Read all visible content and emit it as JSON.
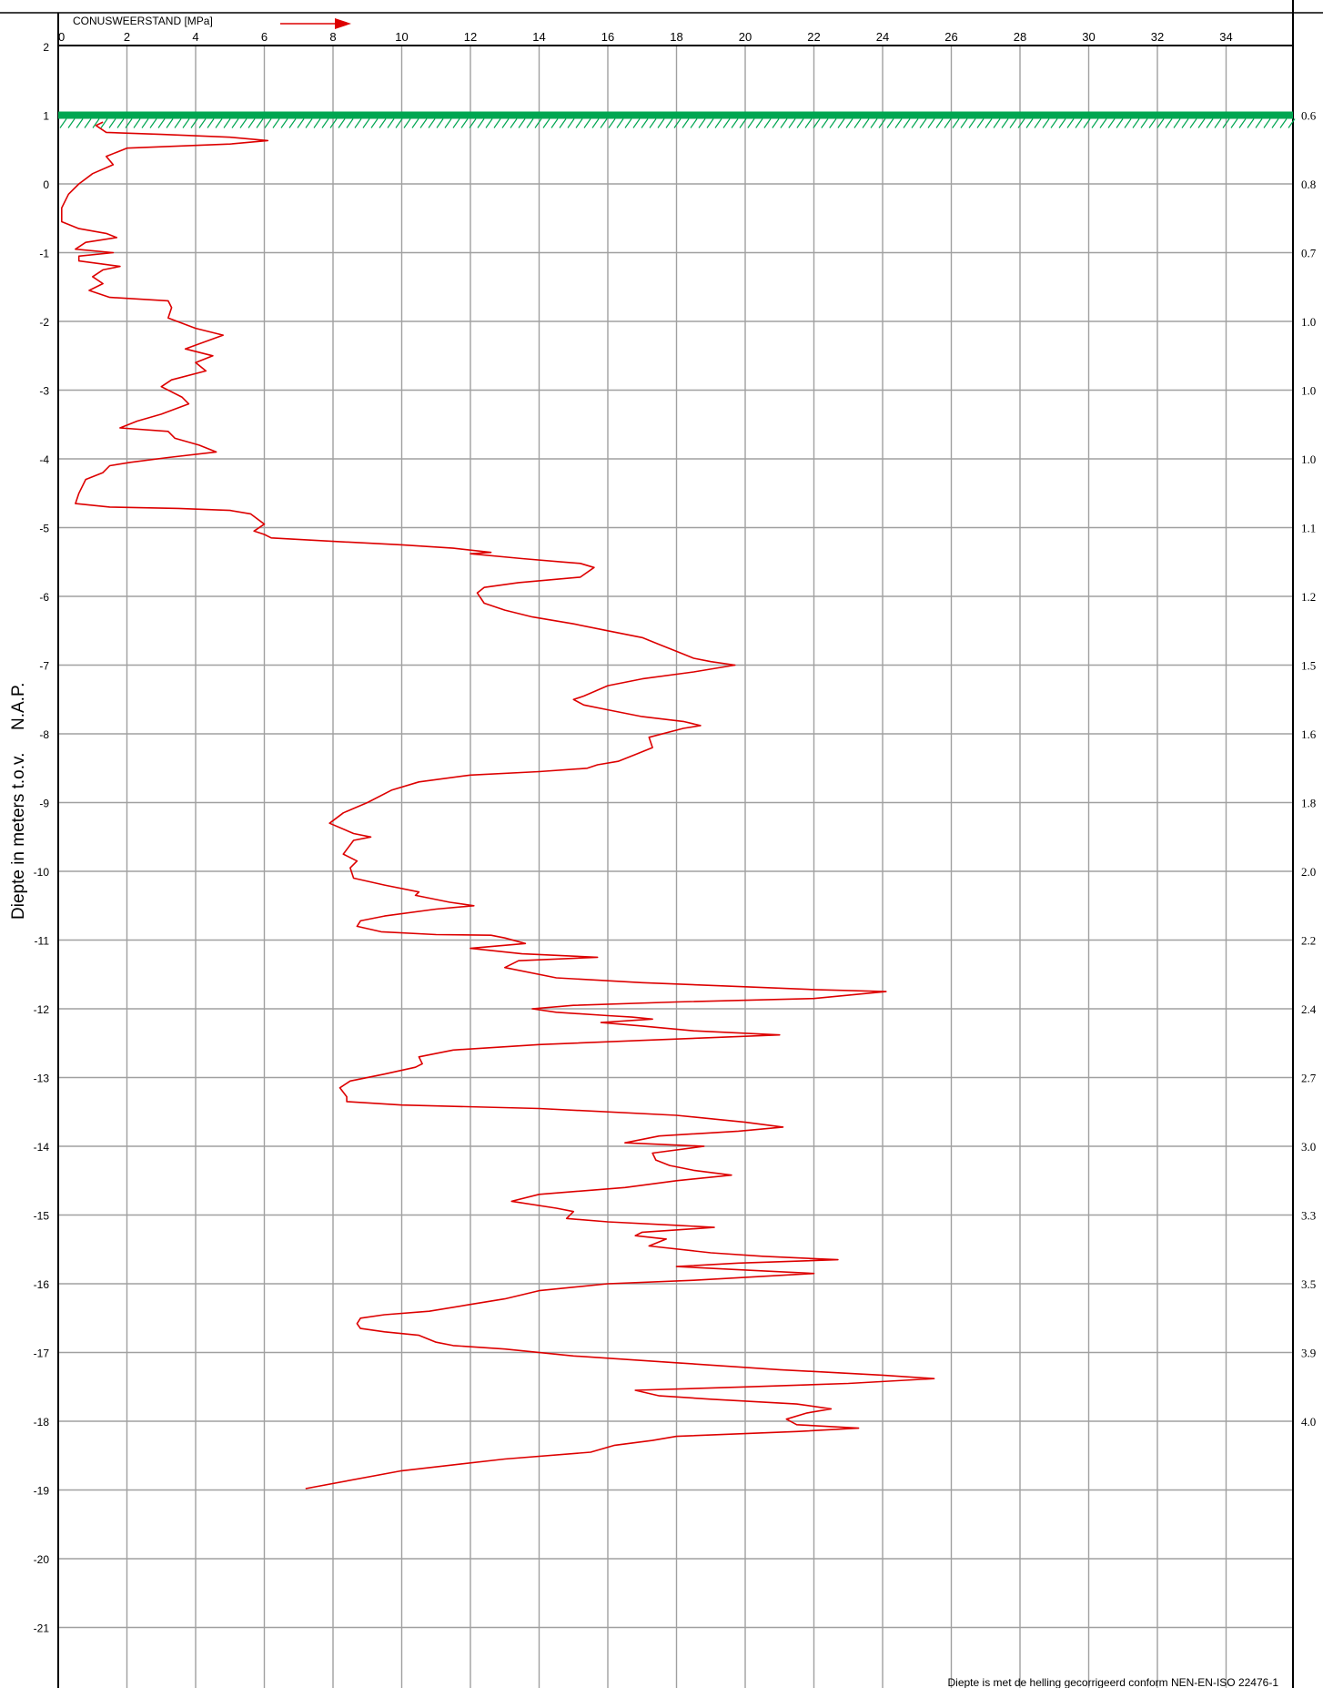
{
  "chart_data": {
    "type": "line",
    "x_axis_title": "CONUSWEERSTAND [MPa]",
    "x_ticks": [
      0,
      2,
      4,
      6,
      8,
      10,
      12,
      14,
      16,
      18,
      20,
      22,
      24,
      26,
      28,
      30,
      32,
      34
    ],
    "x_range": [
      0,
      36
    ],
    "ylabel_left": "Diepte in meters t.o.v.",
    "ylabel_right": "N.A.P.",
    "y_ticks": [
      2,
      1,
      0,
      -1,
      -2,
      -3,
      -4,
      -5,
      -6,
      -7,
      -8,
      -9,
      -10,
      -11,
      -12,
      -13,
      -14,
      -15,
      -16,
      -17,
      -18,
      -19,
      -20,
      -21
    ],
    "y_range": [
      2,
      -22
    ],
    "surface_level": 1.0,
    "right_labels": [
      {
        "y": 1,
        "text": "0.6"
      },
      {
        "y": 0,
        "text": "0.8"
      },
      {
        "y": -1,
        "text": "0.7"
      },
      {
        "y": -2,
        "text": "1.0"
      },
      {
        "y": -3,
        "text": "1.0"
      },
      {
        "y": -4,
        "text": "1.0"
      },
      {
        "y": -5,
        "text": "1.1"
      },
      {
        "y": -6,
        "text": "1.2"
      },
      {
        "y": -7,
        "text": "1.5"
      },
      {
        "y": -8,
        "text": "1.6"
      },
      {
        "y": -9,
        "text": "1.8"
      },
      {
        "y": -10,
        "text": "2.0"
      },
      {
        "y": -11,
        "text": "2.2"
      },
      {
        "y": -12,
        "text": "2.4"
      },
      {
        "y": -13,
        "text": "2.7"
      },
      {
        "y": -14,
        "text": "3.0"
      },
      {
        "y": -15,
        "text": "3.3"
      },
      {
        "y": -16,
        "text": "3.5"
      },
      {
        "y": -17,
        "text": "3.9"
      },
      {
        "y": -18,
        "text": "4.0"
      }
    ],
    "footer_note": "Diepte is met de helling gecorrigeerd conform NEN-EN-ISO 22476-1",
    "colors": {
      "curve": "#dd0000",
      "surface": "#00a651",
      "grid": "#a0a0a0",
      "axis": "#000000"
    },
    "series": [
      {
        "points": [
          [
            1.3,
            0.9
          ],
          [
            1.1,
            0.85
          ],
          [
            1.4,
            0.75
          ],
          [
            3.0,
            0.72
          ],
          [
            5.0,
            0.68
          ],
          [
            6.1,
            0.63
          ],
          [
            5.0,
            0.58
          ],
          [
            2.0,
            0.52
          ],
          [
            1.4,
            0.4
          ],
          [
            1.6,
            0.28
          ],
          [
            1.0,
            0.15
          ],
          [
            0.6,
            0.0
          ],
          [
            0.3,
            -0.15
          ],
          [
            0.1,
            -0.35
          ],
          [
            0.1,
            -0.55
          ],
          [
            0.6,
            -0.65
          ],
          [
            1.4,
            -0.72
          ],
          [
            1.7,
            -0.78
          ],
          [
            0.8,
            -0.85
          ],
          [
            0.5,
            -0.95
          ],
          [
            1.6,
            -1.0
          ],
          [
            0.6,
            -1.05
          ],
          [
            0.6,
            -1.12
          ],
          [
            1.8,
            -1.2
          ],
          [
            1.3,
            -1.25
          ],
          [
            1.0,
            -1.35
          ],
          [
            1.3,
            -1.45
          ],
          [
            0.9,
            -1.55
          ],
          [
            1.5,
            -1.65
          ],
          [
            3.2,
            -1.7
          ],
          [
            3.3,
            -1.8
          ],
          [
            3.2,
            -1.95
          ],
          [
            4.0,
            -2.1
          ],
          [
            4.8,
            -2.2
          ],
          [
            3.7,
            -2.4
          ],
          [
            4.5,
            -2.5
          ],
          [
            4.0,
            -2.6
          ],
          [
            4.3,
            -2.72
          ],
          [
            3.3,
            -2.85
          ],
          [
            3.0,
            -2.95
          ],
          [
            3.6,
            -3.1
          ],
          [
            3.8,
            -3.2
          ],
          [
            3.0,
            -3.35
          ],
          [
            2.3,
            -3.45
          ],
          [
            1.8,
            -3.55
          ],
          [
            3.2,
            -3.6
          ],
          [
            3.4,
            -3.7
          ],
          [
            4.1,
            -3.8
          ],
          [
            4.6,
            -3.9
          ],
          [
            3.2,
            -3.98
          ],
          [
            2.1,
            -4.05
          ],
          [
            1.5,
            -4.1
          ],
          [
            1.3,
            -4.2
          ],
          [
            0.8,
            -4.3
          ],
          [
            0.6,
            -4.5
          ],
          [
            0.5,
            -4.65
          ],
          [
            1.5,
            -4.7
          ],
          [
            3.5,
            -4.72
          ],
          [
            5.0,
            -4.75
          ],
          [
            5.6,
            -4.8
          ],
          [
            6.0,
            -4.95
          ],
          [
            5.7,
            -5.05
          ],
          [
            6.0,
            -5.1
          ],
          [
            6.2,
            -5.15
          ],
          [
            8.0,
            -5.2
          ],
          [
            10.0,
            -5.25
          ],
          [
            11.5,
            -5.3
          ],
          [
            12.6,
            -5.36
          ],
          [
            12.0,
            -5.38
          ],
          [
            13.5,
            -5.45
          ],
          [
            14.7,
            -5.5
          ],
          [
            15.2,
            -5.52
          ],
          [
            15.6,
            -5.58
          ],
          [
            15.2,
            -5.72
          ],
          [
            13.4,
            -5.8
          ],
          [
            12.4,
            -5.87
          ],
          [
            12.2,
            -5.95
          ],
          [
            12.4,
            -6.1
          ],
          [
            13.0,
            -6.2
          ],
          [
            13.8,
            -6.3
          ],
          [
            15.0,
            -6.4
          ],
          [
            16.0,
            -6.5
          ],
          [
            17.0,
            -6.6
          ],
          [
            17.5,
            -6.7
          ],
          [
            18.0,
            -6.8
          ],
          [
            18.5,
            -6.9
          ],
          [
            19.0,
            -6.95
          ],
          [
            19.7,
            -7.0
          ],
          [
            18.5,
            -7.1
          ],
          [
            17.0,
            -7.2
          ],
          [
            16.0,
            -7.3
          ],
          [
            15.3,
            -7.45
          ],
          [
            15.0,
            -7.5
          ],
          [
            15.3,
            -7.58
          ],
          [
            16.0,
            -7.65
          ],
          [
            17.0,
            -7.75
          ],
          [
            18.2,
            -7.82
          ],
          [
            18.7,
            -7.88
          ],
          [
            18.2,
            -7.92
          ],
          [
            17.2,
            -8.05
          ],
          [
            17.3,
            -8.2
          ],
          [
            16.8,
            -8.3
          ],
          [
            16.3,
            -8.4
          ],
          [
            15.7,
            -8.45
          ],
          [
            15.4,
            -8.5
          ],
          [
            14.0,
            -8.55
          ],
          [
            12.0,
            -8.6
          ],
          [
            10.5,
            -8.7
          ],
          [
            9.7,
            -8.82
          ],
          [
            9.0,
            -9.0
          ],
          [
            8.3,
            -9.15
          ],
          [
            7.9,
            -9.3
          ],
          [
            8.6,
            -9.45
          ],
          [
            9.1,
            -9.5
          ],
          [
            8.6,
            -9.55
          ],
          [
            8.3,
            -9.75
          ],
          [
            8.7,
            -9.85
          ],
          [
            8.5,
            -9.95
          ],
          [
            8.6,
            -10.1
          ],
          [
            9.5,
            -10.2
          ],
          [
            10.5,
            -10.3
          ],
          [
            10.4,
            -10.35
          ],
          [
            11.4,
            -10.45
          ],
          [
            12.1,
            -10.5
          ],
          [
            11.0,
            -10.55
          ],
          [
            9.5,
            -10.65
          ],
          [
            8.8,
            -10.72
          ],
          [
            8.7,
            -10.8
          ],
          [
            9.4,
            -10.88
          ],
          [
            11.0,
            -10.92
          ],
          [
            12.6,
            -10.93
          ],
          [
            13.0,
            -10.97
          ],
          [
            13.6,
            -11.05
          ],
          [
            12.0,
            -11.12
          ],
          [
            13.5,
            -11.2
          ],
          [
            15.7,
            -11.25
          ],
          [
            13.4,
            -11.3
          ],
          [
            13.0,
            -11.4
          ],
          [
            14.5,
            -11.55
          ],
          [
            17.0,
            -11.62
          ],
          [
            20.0,
            -11.68
          ],
          [
            22.0,
            -11.72
          ],
          [
            24.1,
            -11.75
          ],
          [
            22.0,
            -11.85
          ],
          [
            18.0,
            -11.9
          ],
          [
            15.0,
            -11.95
          ],
          [
            13.8,
            -12.0
          ],
          [
            14.5,
            -12.05
          ],
          [
            16.0,
            -12.1
          ],
          [
            16.7,
            -12.12
          ],
          [
            17.3,
            -12.15
          ],
          [
            15.8,
            -12.2
          ],
          [
            17.0,
            -12.25
          ],
          [
            18.5,
            -12.32
          ],
          [
            21.0,
            -12.38
          ],
          [
            19.0,
            -12.42
          ],
          [
            17.0,
            -12.46
          ],
          [
            14.0,
            -12.52
          ],
          [
            11.5,
            -12.6
          ],
          [
            10.5,
            -12.7
          ],
          [
            10.6,
            -12.8
          ],
          [
            10.4,
            -12.85
          ],
          [
            9.5,
            -12.95
          ],
          [
            8.5,
            -13.05
          ],
          [
            8.2,
            -13.15
          ],
          [
            8.4,
            -13.28
          ],
          [
            8.4,
            -13.35
          ],
          [
            10.0,
            -13.4
          ],
          [
            14.0,
            -13.45
          ],
          [
            18.0,
            -13.55
          ],
          [
            20.0,
            -13.65
          ],
          [
            21.1,
            -13.72
          ],
          [
            19.8,
            -13.78
          ],
          [
            17.5,
            -13.85
          ],
          [
            16.5,
            -13.95
          ],
          [
            18.8,
            -14.0
          ],
          [
            17.3,
            -14.1
          ],
          [
            17.4,
            -14.2
          ],
          [
            17.8,
            -14.28
          ],
          [
            18.5,
            -14.35
          ],
          [
            19.6,
            -14.42
          ],
          [
            18.0,
            -14.5
          ],
          [
            16.5,
            -14.6
          ],
          [
            14.0,
            -14.7
          ],
          [
            13.2,
            -14.8
          ],
          [
            14.5,
            -14.9
          ],
          [
            15.0,
            -14.95
          ],
          [
            14.8,
            -15.05
          ],
          [
            16.0,
            -15.1
          ],
          [
            18.0,
            -15.15
          ],
          [
            19.1,
            -15.18
          ],
          [
            17.0,
            -15.25
          ],
          [
            16.8,
            -15.3
          ],
          [
            17.7,
            -15.35
          ],
          [
            17.2,
            -15.45
          ],
          [
            19.0,
            -15.55
          ],
          [
            20.5,
            -15.6
          ],
          [
            22.7,
            -15.65
          ],
          [
            19.8,
            -15.7
          ],
          [
            18.0,
            -15.75
          ],
          [
            20.0,
            -15.8
          ],
          [
            22.0,
            -15.85
          ],
          [
            18.5,
            -15.95
          ],
          [
            16.0,
            -16.0
          ],
          [
            14.0,
            -16.1
          ],
          [
            13.0,
            -16.22
          ],
          [
            12.0,
            -16.3
          ],
          [
            10.8,
            -16.4
          ],
          [
            9.5,
            -16.45
          ],
          [
            8.8,
            -16.5
          ],
          [
            8.7,
            -16.58
          ],
          [
            8.8,
            -16.65
          ],
          [
            9.5,
            -16.7
          ],
          [
            10.5,
            -16.75
          ],
          [
            11.0,
            -16.85
          ],
          [
            11.5,
            -16.9
          ],
          [
            13.0,
            -16.95
          ],
          [
            15.0,
            -17.05
          ],
          [
            18.0,
            -17.15
          ],
          [
            21.0,
            -17.25
          ],
          [
            24.0,
            -17.33
          ],
          [
            25.5,
            -17.38
          ],
          [
            23.0,
            -17.45
          ],
          [
            20.0,
            -17.5
          ],
          [
            16.8,
            -17.55
          ],
          [
            17.5,
            -17.63
          ],
          [
            19.0,
            -17.68
          ],
          [
            21.5,
            -17.75
          ],
          [
            22.5,
            -17.82
          ],
          [
            21.8,
            -17.88
          ],
          [
            21.2,
            -17.97
          ],
          [
            21.5,
            -18.05
          ],
          [
            23.3,
            -18.1
          ],
          [
            21.5,
            -18.15
          ],
          [
            18.0,
            -18.22
          ],
          [
            17.3,
            -18.28
          ],
          [
            16.2,
            -18.35
          ],
          [
            15.5,
            -18.45
          ],
          [
            13.0,
            -18.55
          ],
          [
            10.0,
            -18.72
          ],
          [
            7.2,
            -18.98
          ]
        ]
      }
    ]
  }
}
